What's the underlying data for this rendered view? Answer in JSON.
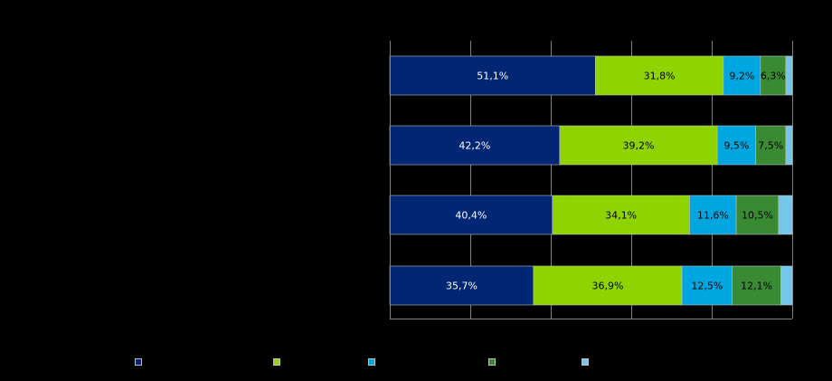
{
  "chart_data": {
    "type": "bar",
    "orientation": "horizontal",
    "stacked": true,
    "title": "",
    "xlabel": "",
    "ylabel": "",
    "xlim": [
      0,
      100
    ],
    "grid": true,
    "legend_position": "bottom",
    "categories": [
      "",
      "",
      "",
      ""
    ],
    "series": [
      {
        "color": "#002674",
        "label_color": "#ffffff",
        "values": [
          51.1,
          42.2,
          40.4,
          35.7
        ],
        "labels": [
          "51,1%",
          "42,2%",
          "40,4%",
          "35,7%"
        ]
      },
      {
        "color": "#8fd400",
        "label_color": "#000000",
        "values": [
          31.8,
          39.2,
          34.1,
          36.9
        ],
        "labels": [
          "31,8%",
          "39,2%",
          "34,1%",
          "36,9%"
        ]
      },
      {
        "color": "#00a6e0",
        "label_color": "#000000",
        "values": [
          9.2,
          9.5,
          11.6,
          12.5
        ],
        "labels": [
          "9,2%",
          "9,5%",
          "11,6%",
          "12,5%"
        ]
      },
      {
        "color": "#3a8a34",
        "label_color": "#000000",
        "values": [
          6.3,
          7.5,
          10.5,
          12.1
        ],
        "labels": [
          "6,3%",
          "7,5%",
          "10,5%",
          "12,1%"
        ]
      },
      {
        "color": "#74c6ea",
        "label_color": "#000000",
        "values": [
          1.6,
          1.6,
          3.4,
          2.8
        ],
        "labels": [
          "",
          "",
          "",
          ""
        ]
      }
    ]
  }
}
